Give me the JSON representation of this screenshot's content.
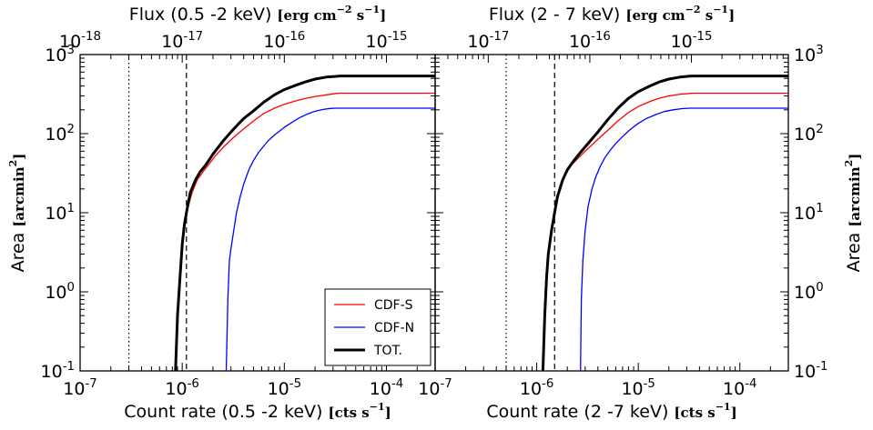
{
  "chart_data": [
    {
      "type": "line",
      "panel": "left",
      "xscale": "log",
      "yscale": "log",
      "xlim": [
        1e-07,
        0.0003
      ],
      "ylim": [
        0.1,
        1000
      ],
      "xlabel": {
        "main": "Count rate (0.5 -2 keV) ",
        "unit": "[cts s",
        "exp": "−1",
        "close": "]"
      },
      "ylabel": {
        "main": "Area ",
        "unit": "[arcmin",
        "exp": "2",
        "close": "]"
      },
      "toplabel": {
        "main": "Flux (0.5 -2 keV) ",
        "unit": "[erg cm",
        "exp1": "−2",
        "mid": " s",
        "exp2": "−1",
        "close": "]"
      },
      "xticks": [
        {
          "v": 1e-07,
          "base": "10",
          "exp": "-7"
        },
        {
          "v": 1e-06,
          "base": "10",
          "exp": "-6"
        },
        {
          "v": 1e-05,
          "base": "10",
          "exp": "-5"
        },
        {
          "v": 0.0001,
          "base": "10",
          "exp": "-4"
        }
      ],
      "yticks": [
        {
          "v": 0.1,
          "base": "10",
          "exp": "-1"
        },
        {
          "v": 1,
          "base": "10",
          "exp": "0"
        },
        {
          "v": 10,
          "base": "10",
          "exp": "1"
        },
        {
          "v": 100,
          "base": "10",
          "exp": "2"
        },
        {
          "v": 1000,
          "base": "10",
          "exp": "3"
        }
      ],
      "top_flux_per_count": 1e-11,
      "top_range": [
        1e-18,
        3e-15
      ],
      "topticks": [
        {
          "v": 1e-18,
          "base": "10",
          "exp": "-18"
        },
        {
          "v": 1e-17,
          "base": "10",
          "exp": "-17"
        },
        {
          "v": 1e-16,
          "base": "10",
          "exp": "-16"
        },
        {
          "v": 1e-15,
          "base": "10",
          "exp": "-15"
        }
      ],
      "vlines": [
        {
          "name": "dotted-line",
          "x": 3e-07,
          "style": "dotted"
        },
        {
          "name": "dashed-line",
          "x": 1.1e-06,
          "style": "dashed"
        }
      ],
      "series": [
        {
          "name": "CDF-S",
          "color": "#ff0000",
          "width": 1.3,
          "x": [
            1.1e-06,
            1.25e-06,
            1.4e-06,
            1.6e-06,
            1.8e-06,
            2.1e-06,
            2.6e-06,
            3.2e-06,
            4e-06,
            5e-06,
            6.3e-06,
            8e-06,
            1e-05,
            1.3e-05,
            1.6e-05,
            2e-05,
            2.6e-05,
            3.2e-05,
            3.5e-05,
            0.0001,
            0.0003
          ],
          "y": [
            10,
            18,
            26,
            33,
            40,
            52,
            70,
            90,
            115,
            145,
            180,
            210,
            235,
            260,
            278,
            295,
            310,
            322,
            325,
            325,
            325
          ]
        },
        {
          "name": "CDF-N",
          "color": "#0000ff",
          "width": 1.3,
          "x": [
            2.7e-06,
            2.8e-06,
            2.9e-06,
            3e-06,
            3.2e-06,
            3.4e-06,
            3.7e-06,
            4e-06,
            4.5e-06,
            5e-06,
            5.6e-06,
            6.3e-06,
            7e-06,
            8e-06,
            9e-06,
            1e-05,
            1.2e-05,
            1.4e-05,
            1.7e-05,
            2e-05,
            2.4e-05,
            2.8e-05,
            3.2e-05,
            0.0001,
            0.0003
          ],
          "y": [
            0.1,
            0.8,
            2.5,
            3.5,
            6,
            10,
            16,
            23,
            35,
            46,
            58,
            70,
            82,
            96,
            108,
            120,
            140,
            158,
            178,
            192,
            202,
            208,
            210,
            210,
            210
          ]
        },
        {
          "name": "TOT.",
          "color": "#000000",
          "width": 3.0,
          "x": [
            8.6e-07,
            9e-07,
            9.5e-07,
            1e-06,
            1.05e-06,
            1.1e-06,
            1.2e-06,
            1.35e-06,
            1.5e-06,
            1.7e-06,
            2e-06,
            2.5e-06,
            3e-06,
            3.5e-06,
            4e-06,
            5e-06,
            6.3e-06,
            8e-06,
            1e-05,
            1.3e-05,
            1.6e-05,
            2e-05,
            2.6e-05,
            3.2e-05,
            3.5e-05,
            0.0001,
            0.0003
          ],
          "y": [
            0.1,
            0.5,
            1.5,
            4,
            7,
            10,
            18,
            26,
            33,
            40,
            55,
            80,
            105,
            130,
            155,
            195,
            250,
            310,
            360,
            410,
            450,
            490,
            520,
            530,
            535,
            535,
            535
          ]
        }
      ],
      "legend": {
        "placement": "lower-right",
        "entries": [
          "CDF-S",
          "CDF-N",
          "TOT."
        ]
      }
    },
    {
      "type": "line",
      "panel": "right",
      "xscale": "log",
      "yscale": "log",
      "xlim": [
        1e-07,
        0.0003
      ],
      "ylim": [
        0.1,
        1000
      ],
      "xlabel": {
        "main": "Count rate (2 -7 keV) ",
        "unit": "[cts s",
        "exp": "−1",
        "close": "]"
      },
      "ylabel": {
        "main": "Area ",
        "unit": "[arcmin",
        "exp": "2",
        "close": "]"
      },
      "toplabel": {
        "main": "Flux (2 - 7 keV) ",
        "unit": "[erg cm",
        "exp1": "−2",
        "mid": " s",
        "exp2": "−1",
        "close": "]"
      },
      "xticks": [
        {
          "v": 1e-07,
          "base": "10",
          "exp": "-7"
        },
        {
          "v": 1e-06,
          "base": "10",
          "exp": "-6"
        },
        {
          "v": 1e-05,
          "base": "10",
          "exp": "-5"
        },
        {
          "v": 0.0001,
          "base": "10",
          "exp": "-4"
        }
      ],
      "yticks": [
        {
          "v": 0.1,
          "base": "10",
          "exp": "-1"
        },
        {
          "v": 1,
          "base": "10",
          "exp": "0"
        },
        {
          "v": 10,
          "base": "10",
          "exp": "1"
        },
        {
          "v": 100,
          "base": "10",
          "exp": "2"
        },
        {
          "v": 1000,
          "base": "10",
          "exp": "3"
        }
      ],
      "top_flux_per_count": 3e-11,
      "top_range": [
        3e-18,
        9e-15
      ],
      "topticks": [
        {
          "v": 1e-17,
          "base": "10",
          "exp": "-17"
        },
        {
          "v": 1e-16,
          "base": "10",
          "exp": "-16"
        },
        {
          "v": 1e-15,
          "base": "10",
          "exp": "-15"
        }
      ],
      "vlines": [
        {
          "name": "dotted-line",
          "x": 5e-07,
          "style": "dotted"
        },
        {
          "name": "dashed-line",
          "x": 1.5e-06,
          "style": "dashed"
        }
      ],
      "series": [
        {
          "name": "CDF-S",
          "color": "#ff0000",
          "width": 1.3,
          "x": [
            1.5e-06,
            1.7e-06,
            1.9e-06,
            2.2e-06,
            2.6e-06,
            3e-06,
            3.5e-06,
            4e-06,
            5e-06,
            6.3e-06,
            8e-06,
            1e-05,
            1.3e-05,
            1.6e-05,
            2e-05,
            2.6e-05,
            3.2e-05,
            3.5e-05,
            0.0001,
            0.0003
          ],
          "y": [
            10,
            20,
            30,
            40,
            50,
            60,
            72,
            85,
            110,
            145,
            185,
            220,
            255,
            280,
            300,
            315,
            322,
            325,
            325,
            325
          ]
        },
        {
          "name": "CDF-N",
          "color": "#0000ff",
          "width": 1.3,
          "x": [
            2.7e-06,
            2.75e-06,
            2.85e-06,
            3e-06,
            3.2e-06,
            3.5e-06,
            3.8e-06,
            4.2e-06,
            4.7e-06,
            5.3e-06,
            6e-06,
            7e-06,
            8e-06,
            9e-06,
            1e-05,
            1.2e-05,
            1.5e-05,
            1.8e-05,
            2.2e-05,
            2.7e-05,
            3.2e-05,
            0.0001,
            0.0003
          ],
          "y": [
            0.1,
            0.8,
            2.5,
            6,
            12,
            20,
            28,
            38,
            50,
            62,
            75,
            92,
            108,
            122,
            135,
            155,
            175,
            190,
            200,
            207,
            210,
            210,
            210
          ]
        },
        {
          "name": "TOT.",
          "color": "#000000",
          "width": 3.0,
          "x": [
            1.15e-06,
            1.2e-06,
            1.25e-06,
            1.3e-06,
            1.4e-06,
            1.5e-06,
            1.6e-06,
            1.8e-06,
            2e-06,
            2.3e-06,
            2.7e-06,
            3.2e-06,
            4e-06,
            5e-06,
            6.3e-06,
            8e-06,
            1e-05,
            1.3e-05,
            1.6e-05,
            2e-05,
            2.6e-05,
            3.2e-05,
            3.5e-05,
            0.0001,
            0.0003
          ],
          "y": [
            0.1,
            0.5,
            1.5,
            3,
            6,
            10,
            16,
            26,
            35,
            45,
            58,
            75,
            105,
            150,
            210,
            280,
            340,
            400,
            450,
            490,
            520,
            532,
            535,
            535,
            535
          ]
        }
      ]
    }
  ]
}
